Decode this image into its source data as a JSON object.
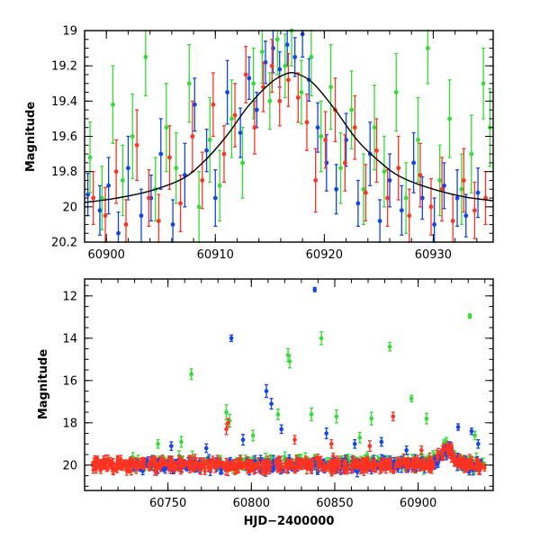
{
  "chart_data": [
    {
      "type": "scatter",
      "panel": "top",
      "title": "",
      "xlabel": "",
      "ylabel": "Magnitude",
      "xlim": [
        60898,
        60935.5
      ],
      "ylim": [
        20.2,
        19.0
      ],
      "y_inverted": true,
      "grid": false,
      "legend": "none",
      "x_ticks": [
        60900,
        60910,
        60920,
        60930
      ],
      "x_tick_labels": [
        "60900",
        "60910",
        "60920",
        "60930"
      ],
      "y_ticks": [
        19.0,
        19.2,
        19.4,
        19.6,
        19.8,
        20.0,
        20.2
      ],
      "y_tick_labels": [
        "19",
        "19.2",
        "19.4",
        "19.6",
        "19.8",
        "20",
        "20.2"
      ],
      "model_curve": {
        "color": "#000000",
        "points": [
          [
            60898,
            19.975
          ],
          [
            60901,
            19.95
          ],
          [
            60904,
            19.91
          ],
          [
            60907,
            19.84
          ],
          [
            60909,
            19.74
          ],
          [
            60911,
            19.6
          ],
          [
            60913,
            19.43
          ],
          [
            60915,
            19.3
          ],
          [
            60916.5,
            19.245
          ],
          [
            60917.5,
            19.245
          ],
          [
            60919,
            19.3
          ],
          [
            60921,
            19.45
          ],
          [
            60923,
            19.62
          ],
          [
            60925,
            19.74
          ],
          [
            60927,
            19.83
          ],
          [
            60930,
            19.9
          ],
          [
            60933,
            19.945
          ],
          [
            60935.5,
            19.965
          ]
        ]
      },
      "series": [
        {
          "color": "#1144ee",
          "points": [
            [
              60898.3,
              19.93,
              0.12
            ],
            [
              60899.4,
              20.02,
              0.14
            ],
            [
              60900.2,
              19.88,
              0.16
            ],
            [
              60901.1,
              20.15,
              0.12
            ],
            [
              60902.0,
              19.78,
              0.18
            ],
            [
              60903.2,
              20.05,
              0.15
            ],
            [
              60904.1,
              19.95,
              0.13
            ],
            [
              60905.0,
              19.7,
              0.2
            ],
            [
              60906.1,
              20.1,
              0.14
            ],
            [
              60907.2,
              19.82,
              0.18
            ],
            [
              60908.1,
              19.42,
              0.15
            ],
            [
              60909.2,
              19.68,
              0.12
            ],
            [
              60910.0,
              19.95,
              0.16
            ],
            [
              60911.1,
              19.35,
              0.18
            ],
            [
              60912.3,
              19.58,
              0.14
            ],
            [
              60913.1,
              19.27,
              0.12
            ],
            [
              60913.8,
              19.45,
              0.1
            ],
            [
              60914.6,
              19.18,
              0.12
            ],
            [
              60915.3,
              19.1,
              0.14
            ],
            [
              60915.9,
              19.22,
              0.1
            ],
            [
              60916.6,
              19.08,
              0.12
            ],
            [
              60917.3,
              19.15,
              0.11
            ],
            [
              60918.0,
              19.02,
              0.13
            ],
            [
              60918.6,
              19.28,
              0.12
            ],
            [
              60919.4,
              19.55,
              0.14
            ],
            [
              60920.2,
              19.75,
              0.16
            ],
            [
              60921.1,
              19.9,
              0.14
            ],
            [
              60922.0,
              19.62,
              0.15
            ],
            [
              60923.1,
              19.98,
              0.13
            ],
            [
              60924.2,
              19.7,
              0.18
            ],
            [
              60925.1,
              20.08,
              0.12
            ],
            [
              60926.0,
              19.85,
              0.15
            ],
            [
              60927.1,
              20.02,
              0.14
            ],
            [
              60928.2,
              19.75,
              0.17
            ],
            [
              60929.0,
              19.95,
              0.12
            ],
            [
              60930.1,
              20.1,
              0.15
            ],
            [
              60931.0,
              19.88,
              0.13
            ],
            [
              60932.2,
              19.95,
              0.16
            ],
            [
              60933.0,
              20.05,
              0.12
            ],
            [
              60934.1,
              19.92,
              0.14
            ]
          ]
        },
        {
          "color": "#33dd33",
          "points": [
            [
              60898.5,
              19.72,
              0.2
            ],
            [
              60899.6,
              19.95,
              0.18
            ],
            [
              60900.6,
              19.42,
              0.22
            ],
            [
              60901.5,
              19.85,
              0.2
            ],
            [
              60902.4,
              19.6,
              0.24
            ],
            [
              60903.6,
              19.15,
              0.22
            ],
            [
              60904.5,
              19.9,
              0.18
            ],
            [
              60905.5,
              19.55,
              0.25
            ],
            [
              60906.4,
              19.78,
              0.2
            ],
            [
              60907.6,
              19.3,
              0.22
            ],
            [
              60908.5,
              20.0,
              0.2
            ],
            [
              60909.5,
              19.62,
              0.24
            ],
            [
              60910.4,
              19.88,
              0.2
            ],
            [
              60911.5,
              19.5,
              0.22
            ],
            [
              60912.5,
              19.75,
              0.2
            ],
            [
              60913.5,
              19.3,
              0.2
            ],
            [
              60914.3,
              19.12,
              0.18
            ],
            [
              60915.0,
              19.4,
              0.16
            ],
            [
              60915.7,
              19.05,
              0.2
            ],
            [
              60916.4,
              19.2,
              0.18
            ],
            [
              60917.0,
              19.0,
              0.2
            ],
            [
              60917.9,
              19.35,
              0.18
            ],
            [
              60918.8,
              19.15,
              0.22
            ],
            [
              60919.7,
              19.6,
              0.2
            ],
            [
              60920.6,
              19.32,
              0.24
            ],
            [
              60921.5,
              19.78,
              0.2
            ],
            [
              60922.5,
              19.45,
              0.22
            ],
            [
              60923.6,
              19.9,
              0.2
            ],
            [
              60924.6,
              19.55,
              0.24
            ],
            [
              60925.5,
              19.8,
              0.2
            ],
            [
              60926.6,
              19.35,
              0.22
            ],
            [
              60927.5,
              19.95,
              0.2
            ],
            [
              60928.6,
              19.62,
              0.24
            ],
            [
              60929.5,
              19.1,
              0.2
            ],
            [
              60930.6,
              19.85,
              0.2
            ],
            [
              60931.5,
              19.5,
              0.22
            ],
            [
              60932.6,
              19.9,
              0.2
            ],
            [
              60933.5,
              19.7,
              0.22
            ],
            [
              60934.6,
              19.3,
              0.2
            ],
            [
              60935.2,
              19.55,
              0.22
            ]
          ]
        },
        {
          "color": "#ff3322",
          "points": [
            [
              60898.8,
              19.95,
              0.15
            ],
            [
              60899.9,
              20.05,
              0.16
            ],
            [
              60900.9,
              19.8,
              0.18
            ],
            [
              60901.8,
              20.1,
              0.14
            ],
            [
              60902.8,
              19.65,
              0.2
            ],
            [
              60903.9,
              19.95,
              0.16
            ],
            [
              60904.8,
              20.08,
              0.15
            ],
            [
              60905.8,
              19.72,
              0.18
            ],
            [
              60906.8,
              19.98,
              0.16
            ],
            [
              60907.9,
              19.6,
              0.2
            ],
            [
              60908.8,
              19.85,
              0.16
            ],
            [
              60909.8,
              19.42,
              0.18
            ],
            [
              60910.8,
              19.7,
              0.16
            ],
            [
              60911.8,
              19.48,
              0.18
            ],
            [
              60912.8,
              19.25,
              0.16
            ],
            [
              60913.6,
              19.55,
              0.15
            ],
            [
              60914.4,
              19.32,
              0.14
            ],
            [
              60915.2,
              19.2,
              0.15
            ],
            [
              60915.9,
              19.4,
              0.14
            ],
            [
              60916.7,
              19.28,
              0.15
            ],
            [
              60917.6,
              19.38,
              0.14
            ],
            [
              60918.4,
              19.52,
              0.16
            ],
            [
              60919.2,
              19.85,
              0.18
            ],
            [
              60920.1,
              19.62,
              0.16
            ],
            [
              60921.0,
              19.45,
              0.18
            ],
            [
              60921.9,
              19.75,
              0.16
            ],
            [
              60922.8,
              19.55,
              0.18
            ],
            [
              60923.8,
              19.92,
              0.16
            ],
            [
              60924.8,
              19.68,
              0.18
            ],
            [
              60925.8,
              19.95,
              0.16
            ],
            [
              60926.8,
              19.78,
              0.18
            ],
            [
              60927.8,
              20.05,
              0.15
            ],
            [
              60928.8,
              19.82,
              0.18
            ],
            [
              60929.8,
              20.0,
              0.16
            ],
            [
              60930.8,
              19.9,
              0.18
            ],
            [
              60931.8,
              20.08,
              0.15
            ],
            [
              60932.8,
              19.85,
              0.18
            ],
            [
              60933.8,
              20.02,
              0.16
            ],
            [
              60934.8,
              19.95,
              0.15
            ]
          ]
        }
      ]
    },
    {
      "type": "scatter",
      "panel": "bottom",
      "title": "",
      "xlabel": "HJD−2400000",
      "ylabel": "Magnitude",
      "xlim": [
        60700,
        60945
      ],
      "ylim": [
        21.2,
        11.2
      ],
      "y_inverted": true,
      "grid": false,
      "legend": "none",
      "x_ticks": [
        60750,
        60800,
        60850,
        60900
      ],
      "x_tick_labels": [
        "60750",
        "60800",
        "60850",
        "60900"
      ],
      "y_ticks": [
        12,
        14,
        16,
        18,
        20
      ],
      "y_tick_labels": [
        "12",
        "14",
        "16",
        "18",
        "20"
      ],
      "series": [
        {
          "color": "#1144ee",
          "band_x_range": [
            60728,
            60940
          ],
          "band_mag": 20.0,
          "outliers": [
            [
              60838,
              11.7,
              0.1
            ],
            [
              60788,
              14.0,
              0.15
            ],
            [
              60809,
              16.5,
              0.3
            ],
            [
              60812,
              17.1,
              0.25
            ],
            [
              60752,
              19.1,
              0.2
            ],
            [
              60773,
              19.2,
              0.2
            ],
            [
              60795,
              18.8,
              0.25
            ],
            [
              60818,
              18.3,
              0.2
            ],
            [
              60845,
              18.5,
              0.25
            ],
            [
              60862,
              19.0,
              0.2
            ],
            [
              60878,
              18.9,
              0.2
            ],
            [
              60893,
              19.3,
              0.2
            ],
            [
              60924,
              18.2,
              0.15
            ],
            [
              60932,
              18.4,
              0.15
            ],
            [
              60936,
              19.0,
              0.2
            ]
          ]
        },
        {
          "color": "#33dd33",
          "band_x_range": [
            60728,
            60940
          ],
          "band_mag": 19.9,
          "outliers": [
            [
              60931,
              12.95,
              0.1
            ],
            [
              60842,
              14.0,
              0.3
            ],
            [
              60822,
              14.8,
              0.3
            ],
            [
              60883,
              14.4,
              0.2
            ],
            [
              60764,
              15.7,
              0.25
            ],
            [
              60823,
              15.1,
              0.3
            ],
            [
              60896,
              16.85,
              0.15
            ],
            [
              60785,
              17.5,
              0.35
            ],
            [
              60787,
              17.9,
              0.3
            ],
            [
              60816,
              17.6,
              0.25
            ],
            [
              60836,
              17.6,
              0.3
            ],
            [
              60851,
              17.7,
              0.3
            ],
            [
              60872,
              17.8,
              0.3
            ],
            [
              60905,
              17.8,
              0.25
            ],
            [
              60744,
              19.0,
              0.2
            ],
            [
              60758,
              18.9,
              0.25
            ],
            [
              60801,
              18.6,
              0.25
            ],
            [
              60865,
              18.7,
              0.25
            ],
            [
              60917,
              18.9,
              0.2
            ],
            [
              60934,
              18.6,
              0.2
            ]
          ]
        },
        {
          "color": "#ff3322",
          "band_x_range": [
            60705,
            60940
          ],
          "band_mag": 20.0,
          "outliers": [
            [
              60785,
              18.3,
              0.25
            ],
            [
              60786,
              18.0,
              0.2
            ],
            [
              60885,
              17.7,
              0.2
            ],
            [
              60826,
              18.8,
              0.2
            ],
            [
              60848,
              19.0,
              0.2
            ],
            [
              60871,
              19.1,
              0.25
            ],
            [
              60902,
              19.3,
              0.2
            ],
            [
              60920,
              19.1,
              0.15
            ],
            [
              60705,
              19.95,
              0.12
            ],
            [
              60708,
              20.02,
              0.12
            ],
            [
              60712,
              19.9,
              0.12
            ],
            [
              60716,
              20.05,
              0.12
            ],
            [
              60719,
              20.0,
              0.12
            ],
            [
              60722,
              19.98,
              0.12
            ]
          ]
        }
      ]
    }
  ]
}
